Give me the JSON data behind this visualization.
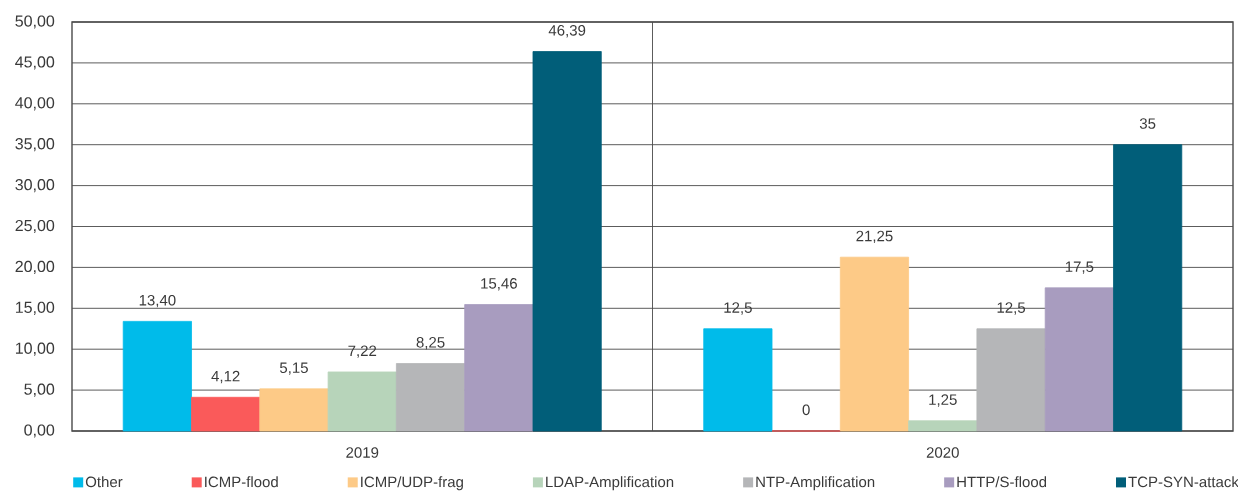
{
  "chart_data": {
    "type": "bar",
    "categories": [
      "2019",
      "2020"
    ],
    "series": [
      {
        "name": "Other",
        "color": "#00bbea",
        "values": [
          13.4,
          12.5
        ],
        "value_labels": [
          "13,40",
          "12,5"
        ]
      },
      {
        "name": "ICMP-flood",
        "color": "#fa5a5a",
        "values": [
          4.12,
          0
        ],
        "value_labels": [
          "4,12",
          "0"
        ]
      },
      {
        "name": "ICMP/UDP-frag",
        "color": "#fdca87",
        "values": [
          5.15,
          21.25
        ],
        "value_labels": [
          "5,15",
          "21,25"
        ]
      },
      {
        "name": "LDAP-Amplification",
        "color": "#b7d4ba",
        "values": [
          7.22,
          1.25
        ],
        "value_labels": [
          "7,22",
          "1,25"
        ]
      },
      {
        "name": "NTP-Amplification",
        "color": "#b5b6b8",
        "values": [
          8.25,
          12.5
        ],
        "value_labels": [
          "8,25",
          "12,5"
        ]
      },
      {
        "name": "HTTP/S-flood",
        "color": "#a89cbf",
        "values": [
          15.46,
          17.5
        ],
        "value_labels": [
          "15,46",
          "17,5"
        ]
      },
      {
        "name": "TCP-SYN-attack",
        "color": "#015e79",
        "values": [
          46.39,
          35
        ],
        "value_labels": [
          "46,39",
          "35"
        ]
      }
    ],
    "ylim": [
      0,
      50
    ],
    "yticks": [
      {
        "value": 0,
        "label": "0,00"
      },
      {
        "value": 5,
        "label": "5,00"
      },
      {
        "value": 10,
        "label": "10,00"
      },
      {
        "value": 15,
        "label": "15,00"
      },
      {
        "value": 20,
        "label": "20,00"
      },
      {
        "value": 25,
        "label": "25,00"
      },
      {
        "value": 30,
        "label": "30,00"
      },
      {
        "value": 35,
        "label": "35,00"
      },
      {
        "value": 40,
        "label": "40,00"
      },
      {
        "value": 45,
        "label": "45,00"
      },
      {
        "value": 50,
        "label": "50,00"
      }
    ],
    "grid": true,
    "legend": "bottom"
  }
}
